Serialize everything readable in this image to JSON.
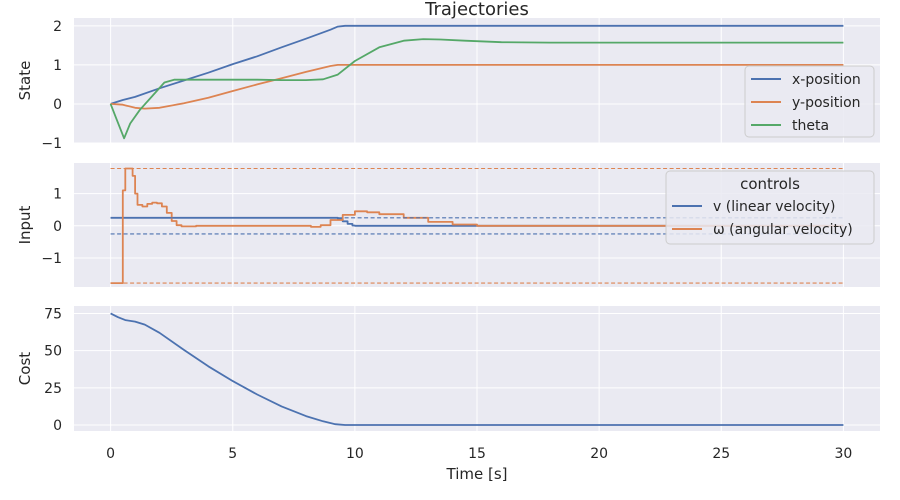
{
  "chart_data": [
    {
      "type": "line",
      "title": "Trajectories",
      "ylabel": "State",
      "xlim": [
        -1.5,
        31.5
      ],
      "ylim": [
        -1.0,
        2.2
      ],
      "yticks": [
        -1,
        0,
        1,
        2
      ],
      "ytick_labels": [
        "−1",
        "0",
        "1",
        "2"
      ],
      "xticks": [
        0,
        5,
        10,
        15,
        20,
        25,
        30
      ],
      "legend": {
        "placement": "right",
        "title": ""
      },
      "series": [
        {
          "name": "x-position",
          "color": "#4c72b0",
          "style": "solid",
          "points": [
            [
              0,
              0
            ],
            [
              0.5,
              0.1
            ],
            [
              1,
              0.18
            ],
            [
              2,
              0.4
            ],
            [
              3,
              0.6
            ],
            [
              4,
              0.8
            ],
            [
              5,
              1.02
            ],
            [
              6,
              1.22
            ],
            [
              7,
              1.45
            ],
            [
              8,
              1.67
            ],
            [
              9,
              1.9
            ],
            [
              9.3,
              1.98
            ],
            [
              9.6,
              2.0
            ],
            [
              10,
              2.0
            ],
            [
              15,
              2.0
            ],
            [
              20,
              2.0
            ],
            [
              25,
              2.0
            ],
            [
              30,
              2.0
            ]
          ]
        },
        {
          "name": "y-position",
          "color": "#dd8452",
          "style": "solid",
          "points": [
            [
              0,
              0
            ],
            [
              0.5,
              -0.02
            ],
            [
              1,
              -0.1
            ],
            [
              1.4,
              -0.12
            ],
            [
              2,
              -0.1
            ],
            [
              3,
              0.02
            ],
            [
              4,
              0.16
            ],
            [
              5,
              0.33
            ],
            [
              6,
              0.5
            ],
            [
              7,
              0.66
            ],
            [
              8,
              0.82
            ],
            [
              9,
              0.97
            ],
            [
              9.3,
              1.0
            ],
            [
              10,
              1.0
            ],
            [
              15,
              1.0
            ],
            [
              20,
              1.0
            ],
            [
              25,
              1.0
            ],
            [
              30,
              1.0
            ]
          ]
        },
        {
          "name": "theta",
          "color": "#55a868",
          "style": "solid",
          "points": [
            [
              0,
              0
            ],
            [
              0.25,
              -0.4
            ],
            [
              0.55,
              -0.88
            ],
            [
              0.8,
              -0.5
            ],
            [
              1.2,
              -0.15
            ],
            [
              1.7,
              0.2
            ],
            [
              2.2,
              0.55
            ],
            [
              2.6,
              0.62
            ],
            [
              3,
              0.62
            ],
            [
              4,
              0.62
            ],
            [
              6,
              0.62
            ],
            [
              7,
              0.61
            ],
            [
              8,
              0.61
            ],
            [
              8.7,
              0.63
            ],
            [
              9.3,
              0.75
            ],
            [
              10,
              1.1
            ],
            [
              11,
              1.45
            ],
            [
              12,
              1.62
            ],
            [
              12.8,
              1.66
            ],
            [
              13.5,
              1.65
            ],
            [
              14.5,
              1.62
            ],
            [
              16,
              1.58
            ],
            [
              18,
              1.57
            ],
            [
              20,
              1.57
            ],
            [
              25,
              1.57
            ],
            [
              30,
              1.57
            ]
          ]
        }
      ]
    },
    {
      "type": "line",
      "ylabel": "Input",
      "xlim": [
        -1.5,
        31.5
      ],
      "ylim": [
        -1.9,
        1.95
      ],
      "yticks": [
        -1,
        0,
        1
      ],
      "ytick_labels": [
        "−1",
        "0",
        "1"
      ],
      "xticks": [
        0,
        5,
        10,
        15,
        20,
        25,
        30
      ],
      "legend": {
        "placement": "right",
        "title": "controls"
      },
      "series": [
        {
          "name": "v (linear velocity)",
          "color": "#4c72b0",
          "style": "steps",
          "points": [
            [
              0,
              0.25
            ],
            [
              9,
              0.25
            ],
            [
              9.3,
              0.22
            ],
            [
              9.5,
              0.14
            ],
            [
              9.7,
              0.06
            ],
            [
              9.9,
              0.01
            ],
            [
              10,
              0
            ],
            [
              15,
              0
            ],
            [
              20,
              0
            ],
            [
              25,
              0
            ],
            [
              30,
              0
            ]
          ]
        },
        {
          "name": "ω (angular velocity)",
          "color": "#dd8452",
          "style": "steps",
          "points": [
            [
              0,
              -1.78
            ],
            [
              0.5,
              -1.78
            ],
            [
              0.5,
              1.1
            ],
            [
              0.6,
              1.78
            ],
            [
              0.8,
              1.78
            ],
            [
              0.9,
              1.55
            ],
            [
              1,
              1.0
            ],
            [
              1.1,
              0.65
            ],
            [
              1.3,
              0.6
            ],
            [
              1.5,
              0.68
            ],
            [
              1.7,
              0.72
            ],
            [
              1.9,
              0.7
            ],
            [
              2.1,
              0.6
            ],
            [
              2.3,
              0.4
            ],
            [
              2.5,
              0.15
            ],
            [
              2.7,
              0.02
            ],
            [
              2.9,
              -0.02
            ],
            [
              3.5,
              0
            ],
            [
              7.8,
              0
            ],
            [
              8.2,
              -0.03
            ],
            [
              8.6,
              0.02
            ],
            [
              9,
              0.18
            ],
            [
              9.5,
              0.34
            ],
            [
              10,
              0.45
            ],
            [
              10.5,
              0.42
            ],
            [
              11,
              0.36
            ],
            [
              12,
              0.25
            ],
            [
              13,
              0.12
            ],
            [
              14,
              0.04
            ],
            [
              15,
              0
            ],
            [
              20,
              0
            ],
            [
              25,
              0
            ],
            [
              30,
              0
            ]
          ]
        },
        {
          "name": "",
          "color": "#4c72b0",
          "style": "dashed",
          "points": [
            [
              0,
              0.25
            ],
            [
              30,
              0.25
            ]
          ]
        },
        {
          "name": "",
          "color": "#4c72b0",
          "style": "dashed",
          "points": [
            [
              0,
              -0.25
            ],
            [
              30,
              -0.25
            ]
          ]
        },
        {
          "name": "",
          "color": "#dd8452",
          "style": "dashed",
          "points": [
            [
              0,
              1.78
            ],
            [
              30,
              1.78
            ]
          ]
        },
        {
          "name": "",
          "color": "#dd8452",
          "style": "dashed",
          "points": [
            [
              0,
              -1.78
            ],
            [
              30,
              -1.78
            ]
          ]
        }
      ]
    },
    {
      "type": "line",
      "ylabel": "Cost",
      "xlabel": "Time [s]",
      "xlim": [
        -1.5,
        31.5
      ],
      "ylim": [
        -4,
        80
      ],
      "yticks": [
        0,
        25,
        50,
        75
      ],
      "ytick_labels": [
        "0",
        "25",
        "50",
        "75"
      ],
      "xticks": [
        0,
        5,
        10,
        15,
        20,
        25,
        30
      ],
      "xtick_labels": [
        "0",
        "5",
        "10",
        "15",
        "20",
        "25",
        "30"
      ],
      "series": [
        {
          "name": "",
          "color": "#4c72b0",
          "style": "solid",
          "points": [
            [
              0,
              75
            ],
            [
              0.3,
              72.5
            ],
            [
              0.6,
              70.5
            ],
            [
              1,
              69.5
            ],
            [
              1.4,
              67.5
            ],
            [
              2,
              62
            ],
            [
              3,
              50.5
            ],
            [
              4,
              39.5
            ],
            [
              5,
              29.5
            ],
            [
              6,
              20.5
            ],
            [
              7,
              12.5
            ],
            [
              8,
              6
            ],
            [
              8.7,
              2.5
            ],
            [
              9.2,
              0.6
            ],
            [
              9.6,
              0
            ],
            [
              10,
              0
            ],
            [
              15,
              0
            ],
            [
              20,
              0
            ],
            [
              25,
              0
            ],
            [
              30,
              0
            ]
          ]
        }
      ]
    }
  ]
}
